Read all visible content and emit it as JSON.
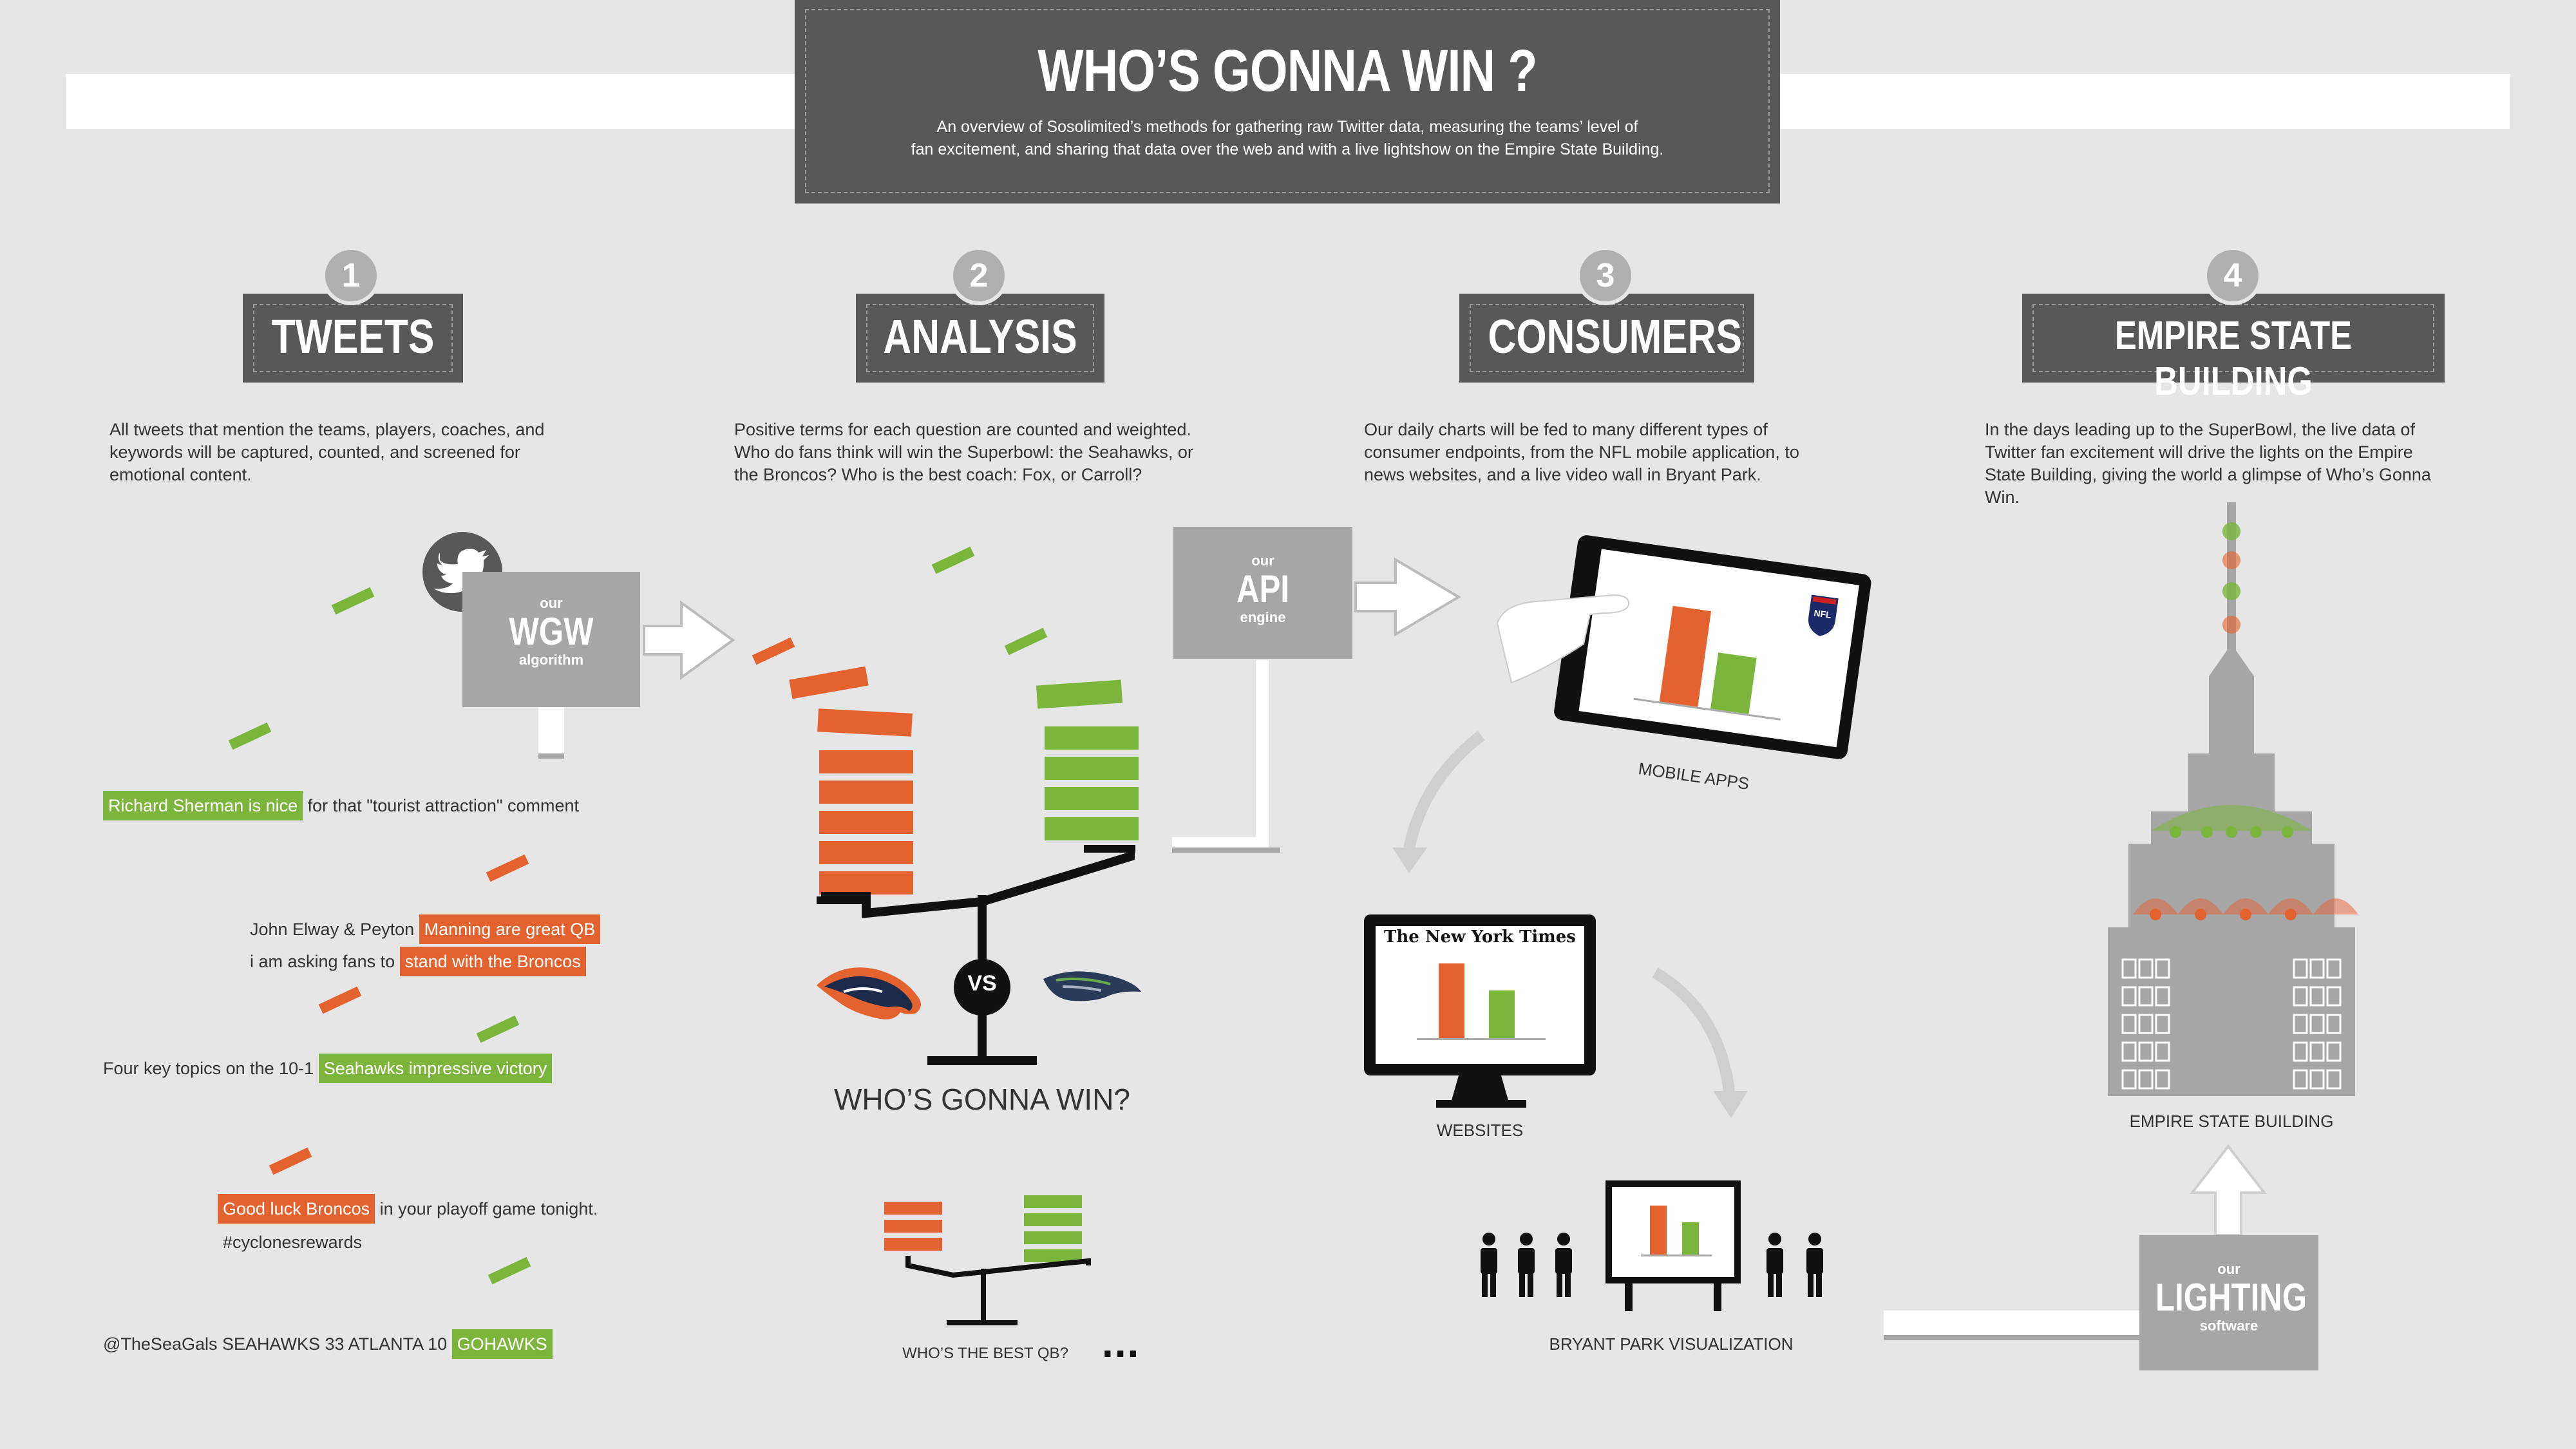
{
  "header": {
    "title": "WHO’S GONNA WIN ?",
    "subtitle_line1": "An overview of Sosolimited’s methods for gathering raw Twitter data, measuring the teams’ level of",
    "subtitle_line2": "fan excitement, and sharing that data over the web and with a live lightshow on the Empire State Building."
  },
  "steps": [
    {
      "number": "1",
      "label": "TWEETS",
      "description": [
        "All tweets that mention the teams, players, coaches, and",
        "keywords will be captured, counted, and screened for",
        "emotional content."
      ]
    },
    {
      "number": "2",
      "label": "ANALYSIS",
      "description": [
        "Positive terms for each question are counted and weighted.",
        "Who do fans think will win the Superbowl: the Seahawks, or",
        "the Broncos? Who is the best coach: Fox, or Carroll?"
      ]
    },
    {
      "number": "3",
      "label": "CONSUMERS",
      "description": [
        "Our daily charts will be fed to many different types of",
        "consumer endpoints, from the NFL mobile application, to",
        "news websites, and a live video wall in Bryant Park."
      ]
    },
    {
      "number": "4",
      "label": "EMPIRE STATE BUILDING",
      "description": [
        "In the days leading up to the SuperBowl, the live data of",
        "Twitter fan excitement will drive the lights on the Empire",
        "State Building, giving the world a glimpse of Who’s Gonna",
        "Win."
      ]
    }
  ],
  "wgw": {
    "small_top": "our",
    "big": "WGW",
    "small_bottom": "algorithm"
  },
  "api": {
    "small_top": "our",
    "big": "API",
    "small_bottom": "engine"
  },
  "lighting": {
    "small_top": "our",
    "big": "LIGHTING",
    "small_bottom": "software"
  },
  "tweets": [
    {
      "highlight": "Richard Sherman is nice",
      "rest": " for that \"tourist attraction\" comment"
    },
    {
      "pre": "John Elway & Peyton ",
      "highlight": "Manning are great QB"
    },
    {
      "pre": "i am asking fans to ",
      "highlight": "stand with the Broncos"
    },
    {
      "pre": "Four key topics on the 10-1 ",
      "highlight": "Seahawks  impressive victory"
    },
    {
      "highlight": "Good luck Broncos",
      "rest": " in your playoff game tonight."
    },
    {
      "line2": "#cyclonesrewards"
    },
    {
      "pre": "@TheSeaGals SEAHAWKS 33 ATLANTA 10 ",
      "highlight": "GOHAWKS"
    }
  ],
  "analysis": {
    "vs": "VS",
    "question_main": "WHO’S GONNA WIN?",
    "question_small": "WHO’S THE BEST QB?",
    "ellipsis": "..."
  },
  "consumers": {
    "mobile": "MOBILE APPS",
    "websites": "WEBSITES",
    "nyt": "The New York Times",
    "nfl": "NFL",
    "bryant": "BRYANT PARK VISUALIZATION"
  },
  "empire": {
    "label": "EMPIRE STATE BUILDING"
  },
  "colors": {
    "orange": "#e4622f",
    "green": "#7cb53c",
    "dark": "#58585a",
    "grey": "#a6a6a6"
  },
  "icons": [
    "twitter-bird-icon",
    "broncos-logo-icon",
    "seahawks-logo-icon",
    "people-icon",
    "arrow-icon"
  ]
}
